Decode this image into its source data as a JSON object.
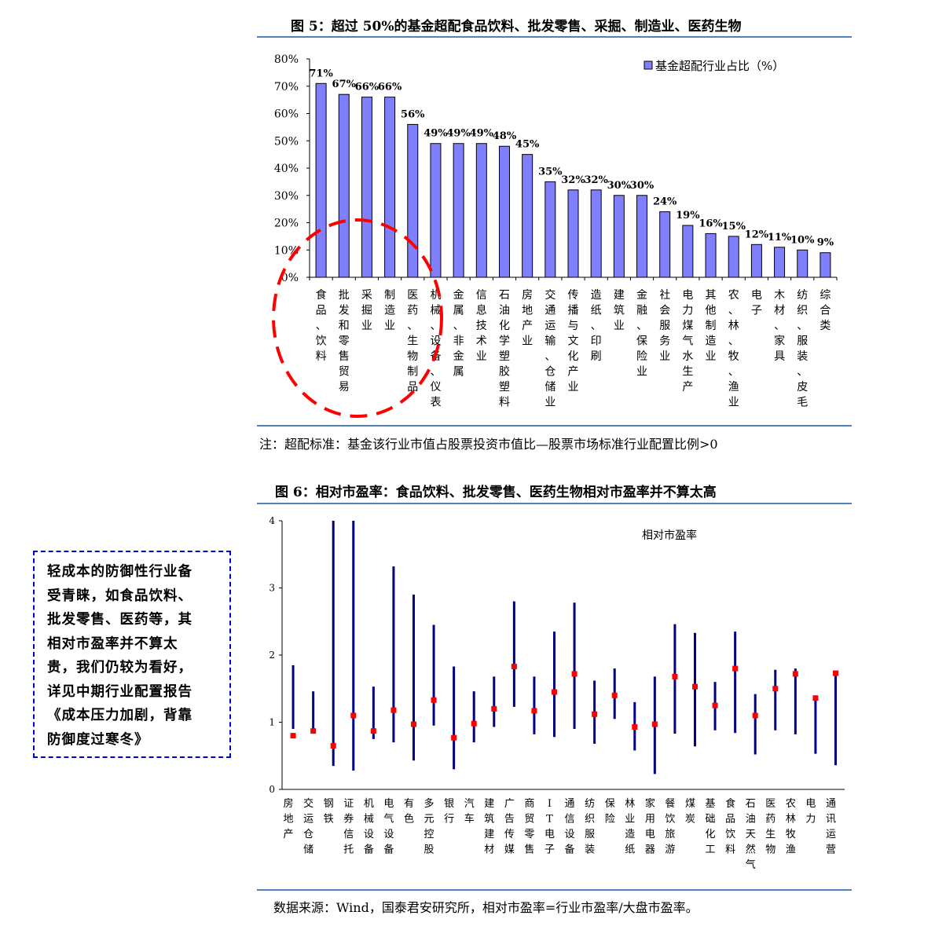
{
  "figure5": {
    "title": "图 5：超过 50%的基金超配食品饮料、批发零售、采掘、制造业、医药生物",
    "note": "注：超配标准：基金该行业市值占股票投资市值比—股票市场标准行业配置比例>0",
    "legend_label": "基金超配行业占比（%）"
  },
  "figure6": {
    "title": "图 6：相对市盈率：食品饮料、批发零售、医药生物相对市盈率并不算太高",
    "source": "数据来源：Wind，国泰君安研究所，相对市盈率=行业市盈率/大盘市盈率。",
    "legend_label": "相对市盈率"
  },
  "callout": {
    "lines": [
      "轻成本的防御性行业备",
      "受青睐，如食品饮料、",
      "批发零售、医药等，其",
      "相对市盈率并不算太",
      "贵，我们仍较为看好，",
      "详见中期行业配置报告",
      "《成本压力加剧，背靠",
      "防御度过寒冬》"
    ]
  },
  "chart_data": [
    {
      "type": "bar",
      "title": "图 5：超过 50%的基金超配食品饮料、批发零售、采掘、制造业、医药生物",
      "categories": [
        "食品、饮料",
        "批发和零售贸易",
        "采掘业",
        "制造业",
        "医药、生物制品",
        "机械、设备、仪表",
        "金属、非金属",
        "信息技术业",
        "石油化学塑胶塑料",
        "房地产业",
        "交通运输、仓储业",
        "传播与文化产业",
        "造纸、印刷",
        "建筑业",
        "金融、保险业",
        "社会服务业",
        "电力煤气水生产",
        "其他制造业",
        "农、林、牧、渔业",
        "电子",
        "木材、家具",
        "纺织、服装、皮毛",
        "综合类"
      ],
      "series": [
        {
          "name": "基金超配行业占比（%）",
          "values": [
            71,
            67,
            66,
            66,
            56,
            49,
            49,
            49,
            48,
            45,
            35,
            32,
            32,
            30,
            30,
            24,
            19,
            16,
            15,
            12,
            11,
            10,
            9
          ]
        }
      ],
      "data_labels": [
        "71%",
        "67%",
        "66%",
        "66%",
        "56%",
        "49%",
        "49%",
        "49%",
        "48%",
        "45%",
        "35%",
        "32%",
        "32%",
        "30%",
        "30%",
        "24%",
        "19%",
        "16%",
        "15%",
        "12%",
        "11%",
        "10%",
        "9%"
      ],
      "yticks": [
        "0%",
        "10%",
        "20%",
        "30%",
        "40%",
        "50%",
        "60%",
        "70%",
        "80%"
      ],
      "ylim": [
        0,
        80
      ],
      "legend": "top-right",
      "color": "#8080ff"
    },
    {
      "type": "range",
      "title": "图 6：相对市盈率：食品饮料、批发零售、医药生物相对市盈率并不算太高",
      "categories": [
        "房地产",
        "交运仓储",
        "钢铁",
        "证券信托",
        "机械设备",
        "电气设备",
        "有色",
        "多元控股",
        "银行",
        "汽车",
        "建筑建材",
        "广告传媒",
        "商贸零售",
        "IT电子",
        "通信设备",
        "纺织服装",
        "保险",
        "林业造纸",
        "家用电器",
        "餐饮旅游",
        "煤炭",
        "基础化工",
        "食品饮料",
        "石油天然气",
        "医药生物",
        "农林牧渔",
        "电力",
        "通讯运营"
      ],
      "low": [
        0.9,
        0.85,
        0.35,
        0.28,
        0.75,
        0.7,
        0.43,
        0.95,
        0.3,
        0.7,
        0.93,
        1.23,
        0.82,
        0.78,
        0.9,
        0.68,
        1.05,
        0.58,
        0.23,
        0.83,
        0.64,
        0.88,
        0.84,
        0.52,
        0.88,
        0.82,
        0.53,
        0.36
      ],
      "high": [
        1.85,
        1.46,
        4.0,
        4.0,
        1.53,
        3.32,
        2.9,
        2.45,
        1.83,
        1.46,
        1.68,
        2.8,
        1.68,
        2.35,
        2.78,
        1.62,
        1.8,
        1.3,
        1.68,
        2.46,
        2.33,
        1.6,
        2.35,
        1.42,
        1.78,
        1.8,
        1.37,
        1.75
      ],
      "current": [
        0.8,
        0.87,
        0.65,
        1.1,
        0.87,
        1.18,
        0.97,
        1.33,
        0.77,
        0.98,
        1.2,
        1.83,
        1.17,
        1.45,
        1.72,
        1.12,
        1.4,
        0.93,
        0.97,
        1.68,
        1.53,
        1.25,
        1.8,
        1.1,
        1.5,
        1.72,
        1.36,
        1.73
      ],
      "series": [
        {
          "name": "相对市盈率"
        }
      ],
      "yticks": [
        "0",
        "1",
        "2",
        "3",
        "4"
      ],
      "ylim": [
        0,
        4
      ],
      "legend": "top-right",
      "line_color": "#000080",
      "marker_color": "#ff0000"
    }
  ]
}
